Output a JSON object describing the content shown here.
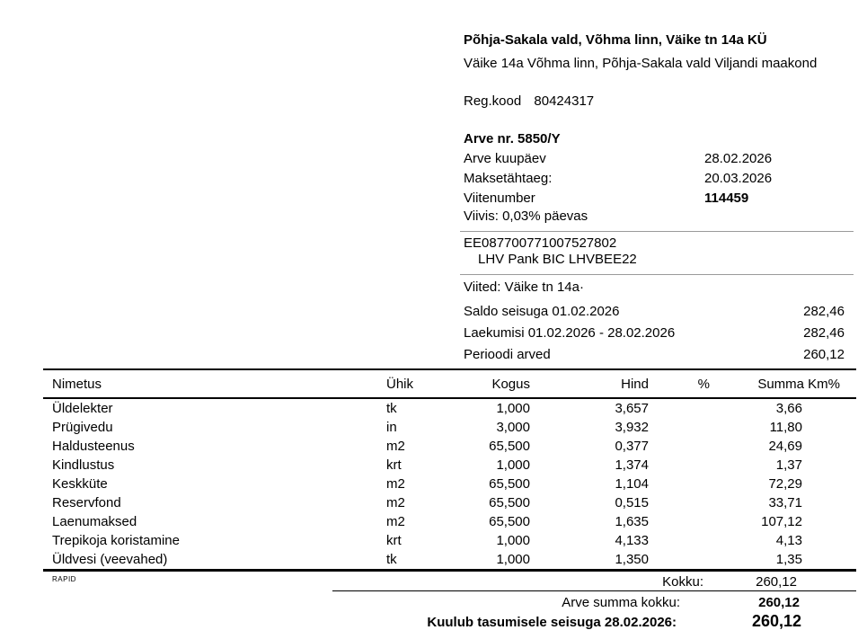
{
  "recipient": {
    "name": "Põhja-Sakala vald, Võhma linn, Väike tn 14a KÜ",
    "address": "Väike 14a Võhma linn, Põhja-Sakala vald Viljandi maakond",
    "regcode_label": "Reg.kood",
    "regcode": "80424317"
  },
  "invoice": {
    "number_line": "Arve nr. 5850/Y",
    "fields": [
      {
        "label": "Arve kuupäev",
        "value": "28.02.2026"
      },
      {
        "label": "Maksetähtaeg:",
        "value": "20.03.2026"
      },
      {
        "label": "Viitenumber",
        "value": "114459"
      }
    ],
    "viivis": "Viivis:  0,03% päevas",
    "iban": "EE087700771007527802",
    "bank": "LHV Pank BIC LHVBEE22",
    "viited": "Viited: Väike tn 14a·"
  },
  "balance": [
    {
      "label": "Saldo seisuga 01.02.2026",
      "value": "282,46"
    },
    {
      "label": "Laekumisi 01.02.2026 - 28.02.2026",
      "value": "282,46"
    },
    {
      "label": "Perioodi arved",
      "value": "260,12"
    }
  ],
  "table": {
    "headers": [
      "Nimetus",
      "Ühik",
      "Kogus",
      "Hind",
      "%",
      "Summa Km%"
    ],
    "rows": [
      [
        "Üldelekter",
        "tk",
        "1,000",
        "3,657",
        "",
        "3,66"
      ],
      [
        "Prügivedu",
        "in",
        "3,000",
        "3,932",
        "",
        "11,80"
      ],
      [
        "Haldusteenus",
        "m2",
        "65,500",
        "0,377",
        "",
        "24,69"
      ],
      [
        "Kindlustus",
        "krt",
        "1,000",
        "1,374",
        "",
        "1,37"
      ],
      [
        "Keskküte",
        "m2",
        "65,500",
        "1,104",
        "",
        "72,29"
      ],
      [
        "Reservfond",
        "m2",
        "65,500",
        "0,515",
        "",
        "33,71"
      ],
      [
        "Laenumaksed",
        "m2",
        "65,500",
        "1,635",
        "",
        "107,12"
      ],
      [
        "Trepikoja koristamine",
        "krt",
        "1,000",
        "4,133",
        "",
        "4,13"
      ],
      [
        "Üldvesi (veevahed)",
        "tk",
        "1,000",
        "1,350",
        "",
        "1,35"
      ]
    ]
  },
  "totals": {
    "rapid": "RAPID",
    "kokku_label": "Kokku:",
    "kokku_value": "260,12",
    "arve_summa_label": "Arve summa kokku:",
    "arve_summa_value": "260,12",
    "kuulub_label": "Kuulub tasumisele seisuga 28.02.2026:",
    "kuulub_value": "260,12"
  }
}
